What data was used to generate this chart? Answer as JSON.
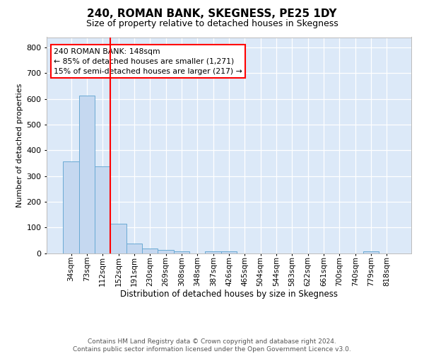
{
  "title": "240, ROMAN BANK, SKEGNESS, PE25 1DY",
  "subtitle": "Size of property relative to detached houses in Skegness",
  "xlabel": "Distribution of detached houses by size in Skegness",
  "ylabel": "Number of detached properties",
  "footnote1": "Contains HM Land Registry data © Crown copyright and database right 2024.",
  "footnote2": "Contains public sector information licensed under the Open Government Licence v3.0.",
  "annotation_line1": "240 ROMAN BANK: 148sqm",
  "annotation_line2": "← 85% of detached houses are smaller (1,271)",
  "annotation_line3": "15% of semi-detached houses are larger (217) →",
  "bar_labels": [
    "34sqm",
    "73sqm",
    "112sqm",
    "152sqm",
    "191sqm",
    "230sqm",
    "269sqm",
    "308sqm",
    "348sqm",
    "387sqm",
    "426sqm",
    "465sqm",
    "504sqm",
    "544sqm",
    "583sqm",
    "622sqm",
    "661sqm",
    "700sqm",
    "740sqm",
    "779sqm",
    "818sqm"
  ],
  "bar_values": [
    357,
    612,
    338,
    113,
    37,
    18,
    13,
    7,
    0,
    8,
    8,
    0,
    0,
    0,
    0,
    0,
    0,
    0,
    0,
    7,
    0
  ],
  "bar_color": "#c5d8f0",
  "bar_edge_color": "#6aaad4",
  "vline_color": "red",
  "vline_x": 2.5,
  "ylim": [
    0,
    840
  ],
  "yticks": [
    0,
    100,
    200,
    300,
    400,
    500,
    600,
    700,
    800
  ],
  "plot_bg_color": "#dce9f8",
  "title_fontsize": 11,
  "subtitle_fontsize": 9,
  "ylabel_fontsize": 8,
  "xlabel_fontsize": 8.5,
  "tick_fontsize": 7.5,
  "footnote_fontsize": 6.5
}
